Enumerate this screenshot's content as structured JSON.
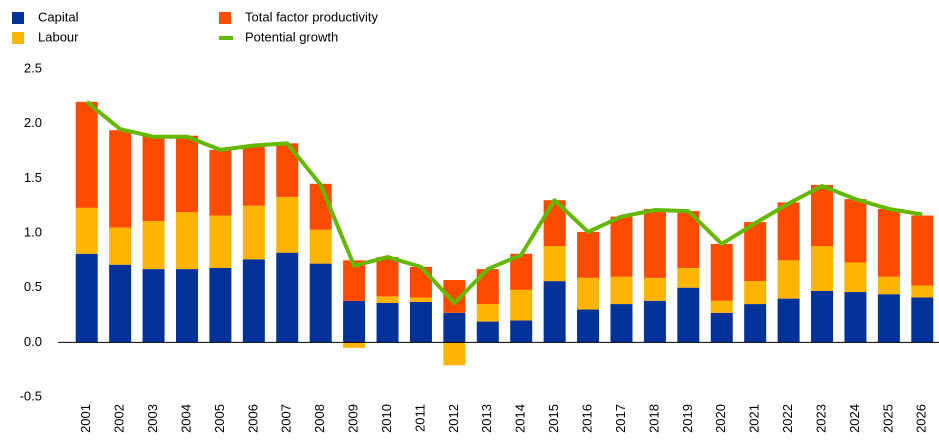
{
  "chart_data": {
    "type": "bar",
    "stacked": true,
    "categories": [
      "2001",
      "2002",
      "2003",
      "2004",
      "2005",
      "2006",
      "2007",
      "2008",
      "2009",
      "2010",
      "2011",
      "2012",
      "2013",
      "2014",
      "2015",
      "2016",
      "2017",
      "2018",
      "2019",
      "2020",
      "2021",
      "2022",
      "2023",
      "2024",
      "2025",
      "2026"
    ],
    "series": [
      {
        "name": "Capital",
        "color": "#003299",
        "type": "bar",
        "values": [
          0.81,
          0.71,
          0.67,
          0.67,
          0.68,
          0.76,
          0.82,
          0.72,
          0.38,
          0.36,
          0.37,
          0.27,
          0.19,
          0.2,
          0.56,
          0.3,
          0.35,
          0.38,
          0.5,
          0.27,
          0.35,
          0.4,
          0.47,
          0.46,
          0.44,
          0.41
        ]
      },
      {
        "name": "Labour",
        "color": "#ffb400",
        "type": "bar",
        "values": [
          0.42,
          0.34,
          0.44,
          0.52,
          0.48,
          0.49,
          0.51,
          0.31,
          -0.05,
          0.06,
          0.04,
          -0.21,
          0.16,
          0.28,
          0.32,
          0.29,
          0.25,
          0.21,
          0.18,
          0.11,
          0.21,
          0.35,
          0.41,
          0.27,
          0.16,
          0.11
        ]
      },
      {
        "name": "Total factor productivity",
        "color": "#ff4b00",
        "type": "bar",
        "values": [
          0.97,
          0.89,
          0.78,
          0.7,
          0.6,
          0.55,
          0.49,
          0.42,
          0.37,
          0.36,
          0.28,
          0.3,
          0.32,
          0.33,
          0.42,
          0.42,
          0.55,
          0.63,
          0.52,
          0.52,
          0.54,
          0.53,
          0.56,
          0.58,
          0.62,
          0.64
        ]
      },
      {
        "name": "Potential growth",
        "color": "#65b800",
        "type": "line",
        "values": [
          2.2,
          1.95,
          1.88,
          1.88,
          1.76,
          1.8,
          1.82,
          1.44,
          0.7,
          0.78,
          0.69,
          0.36,
          0.67,
          0.8,
          1.3,
          1.01,
          1.15,
          1.21,
          1.2,
          0.9,
          1.09,
          1.27,
          1.43,
          1.31,
          1.22,
          1.17
        ]
      }
    ],
    "ylim": [
      -0.5,
      2.5
    ],
    "yticks": [
      -0.5,
      {
        "value": 0,
        "label": "0.0"
      },
      0.5,
      {
        "value": 1,
        "label": "1.0"
      },
      1.5,
      {
        "value": 2,
        "label": "2.0"
      },
      2.5
    ],
    "grid": false,
    "legend": "top-left"
  }
}
